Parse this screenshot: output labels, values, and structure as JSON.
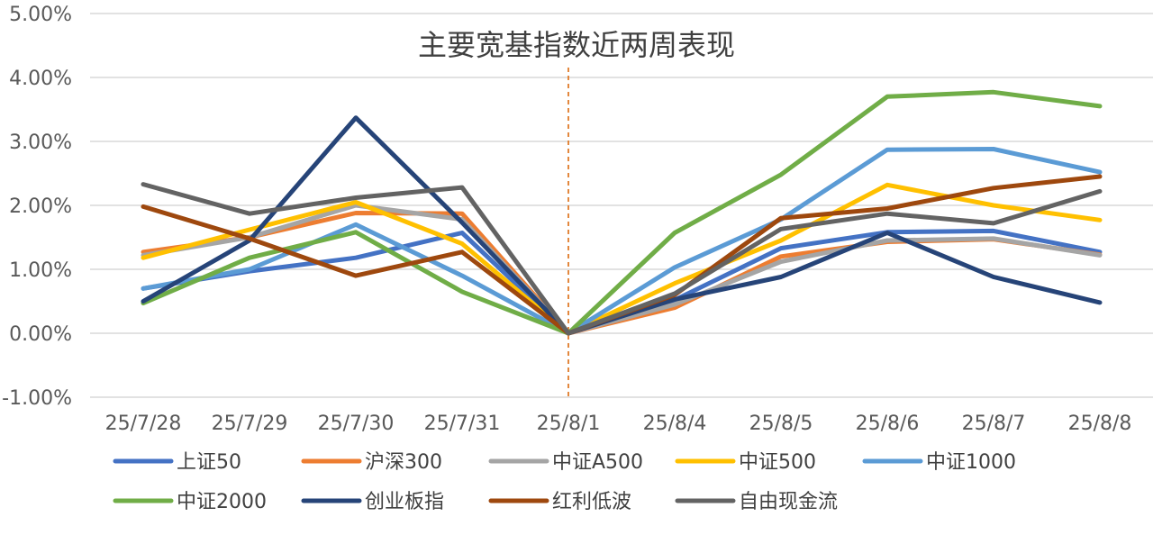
{
  "chart_data": {
    "type": "line",
    "title": "主要宽基指数近两周表现",
    "xlabel": "",
    "ylabel": "",
    "categories": [
      "25/7/28",
      "25/7/29",
      "25/7/30",
      "25/7/31",
      "25/8/1",
      "25/8/4",
      "25/8/5",
      "25/8/6",
      "25/8/7",
      "25/8/8"
    ],
    "y_ticks": [
      "5.00%",
      "4.00%",
      "3.00%",
      "2.00%",
      "1.00%",
      "0.00%",
      "-1.00%"
    ],
    "ylim": [
      -1,
      5
    ],
    "grid": true,
    "legend_position": "bottom",
    "reference_line": {
      "x_category": "25/8/1",
      "style": "dashed",
      "color": "#E07B28"
    },
    "series": [
      {
        "name": "上证50",
        "color": "#4472C4",
        "values": [
          0.7,
          0.97,
          1.18,
          1.57,
          0,
          0.52,
          1.33,
          1.58,
          1.6,
          1.27
        ]
      },
      {
        "name": "沪深300",
        "color": "#ED7D31",
        "values": [
          1.27,
          1.5,
          1.88,
          1.87,
          0,
          0.4,
          1.2,
          1.43,
          1.47,
          1.23
        ]
      },
      {
        "name": "中证A500",
        "color": "#A5A5A5",
        "values": [
          1.22,
          1.5,
          2.0,
          1.78,
          0,
          0.45,
          1.12,
          1.45,
          1.48,
          1.22
        ]
      },
      {
        "name": "中证500",
        "color": "#FFC000",
        "values": [
          1.18,
          1.62,
          2.05,
          1.4,
          0,
          0.78,
          1.45,
          2.32,
          2.0,
          1.77
        ]
      },
      {
        "name": "中证1000",
        "color": "#5B9BD5",
        "values": [
          0.7,
          1.0,
          1.7,
          0.9,
          0,
          1.03,
          1.78,
          2.87,
          2.88,
          2.52
        ]
      },
      {
        "name": "中证2000",
        "color": "#70AD47",
        "values": [
          0.47,
          1.18,
          1.58,
          0.65,
          0,
          1.57,
          2.48,
          3.7,
          3.77,
          3.55
        ]
      },
      {
        "name": "创业板指",
        "color": "#264478",
        "values": [
          0.5,
          1.45,
          3.37,
          1.73,
          0,
          0.53,
          0.88,
          1.57,
          0.88,
          0.48
        ]
      },
      {
        "name": "红利低波",
        "color": "#9E480E",
        "values": [
          1.98,
          1.48,
          0.9,
          1.27,
          0,
          0.6,
          1.8,
          1.95,
          2.27,
          2.45
        ]
      },
      {
        "name": "自由现金流",
        "color": "#636363",
        "values": [
          2.33,
          1.87,
          2.12,
          2.28,
          0,
          0.62,
          1.63,
          1.87,
          1.72,
          2.22
        ]
      }
    ]
  }
}
